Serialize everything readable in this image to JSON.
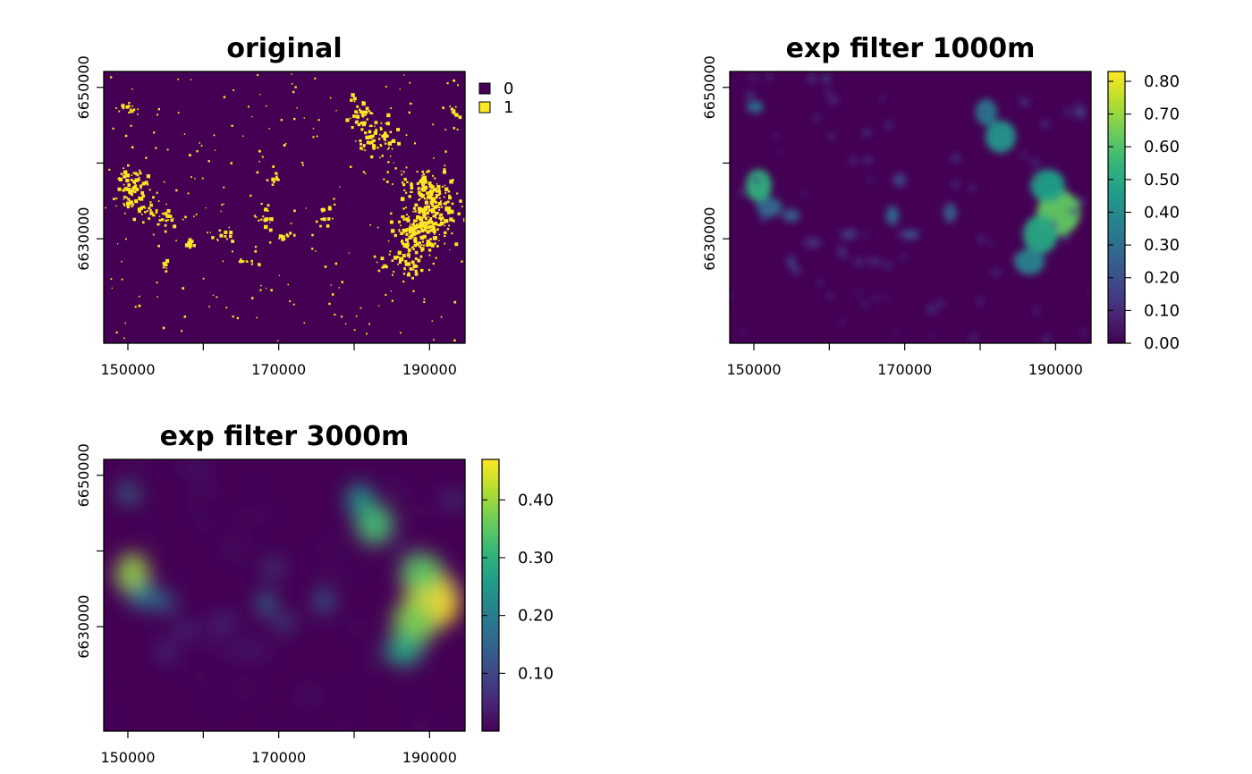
{
  "chart_data": [
    {
      "type": "heatmap",
      "title": "original",
      "xlabel": "",
      "ylabel": "",
      "xlim": [
        146800,
        194700
      ],
      "ylim": [
        6616200,
        6652100
      ],
      "x_ticks": [
        150000,
        160000,
        170000,
        180000,
        190000
      ],
      "x_tick_labels": [
        "150000",
        "",
        "170000",
        "",
        "190000"
      ],
      "y_ticks": [
        6630000,
        6640000,
        6650000
      ],
      "y_tick_labels": [
        "6630000",
        "",
        "6650000"
      ],
      "legend": {
        "kind": "categorical",
        "placement": "right",
        "entries": [
          {
            "label": "0",
            "color": "#440154"
          },
          {
            "label": "1",
            "color": "#FDE725"
          }
        ]
      },
      "palette": "viridis",
      "value_range": [
        0,
        1
      ]
    },
    {
      "type": "heatmap",
      "title": "exp filter 1000m",
      "xlabel": "",
      "ylabel": "",
      "xlim": [
        146800,
        194700
      ],
      "ylim": [
        6616200,
        6652100
      ],
      "x_ticks": [
        150000,
        160000,
        170000,
        180000,
        190000
      ],
      "x_tick_labels": [
        "150000",
        "",
        "170000",
        "",
        "190000"
      ],
      "y_ticks": [
        6630000,
        6640000,
        6650000
      ],
      "y_tick_labels": [
        "6630000",
        "",
        "6650000"
      ],
      "legend": {
        "kind": "colorbar",
        "placement": "right",
        "min": 0,
        "max": 0.83,
        "ticks": [
          0.0,
          0.1,
          0.2,
          0.3,
          0.4,
          0.5,
          0.6,
          0.7,
          0.8
        ],
        "tick_labels": [
          "0.00",
          "0.10",
          "0.20",
          "0.30",
          "0.40",
          "0.50",
          "0.60",
          "0.70",
          "0.80"
        ]
      },
      "palette": "viridis",
      "value_range": [
        0,
        0.83
      ]
    },
    {
      "type": "heatmap",
      "title": "exp filter 3000m",
      "xlabel": "",
      "ylabel": "",
      "xlim": [
        146800,
        194700
      ],
      "ylim": [
        6616200,
        6652100
      ],
      "x_ticks": [
        150000,
        160000,
        170000,
        180000,
        190000
      ],
      "x_tick_labels": [
        "150000",
        "",
        "170000",
        "",
        "190000"
      ],
      "y_ticks": [
        6630000,
        6640000,
        6650000
      ],
      "y_tick_labels": [
        "6630000",
        "",
        "6650000"
      ],
      "legend": {
        "kind": "colorbar",
        "placement": "right",
        "min": 0,
        "max": 0.47,
        "ticks": [
          0.1,
          0.2,
          0.3,
          0.4
        ],
        "tick_labels": [
          "0.10",
          "0.20",
          "0.30",
          "0.40"
        ]
      },
      "palette": "viridis",
      "value_range": [
        0,
        0.47
      ]
    }
  ],
  "colors": {
    "viridis_low": "#440154",
    "viridis_high": "#FDE725",
    "frame": "#000000",
    "background": "#FFFFFF"
  }
}
